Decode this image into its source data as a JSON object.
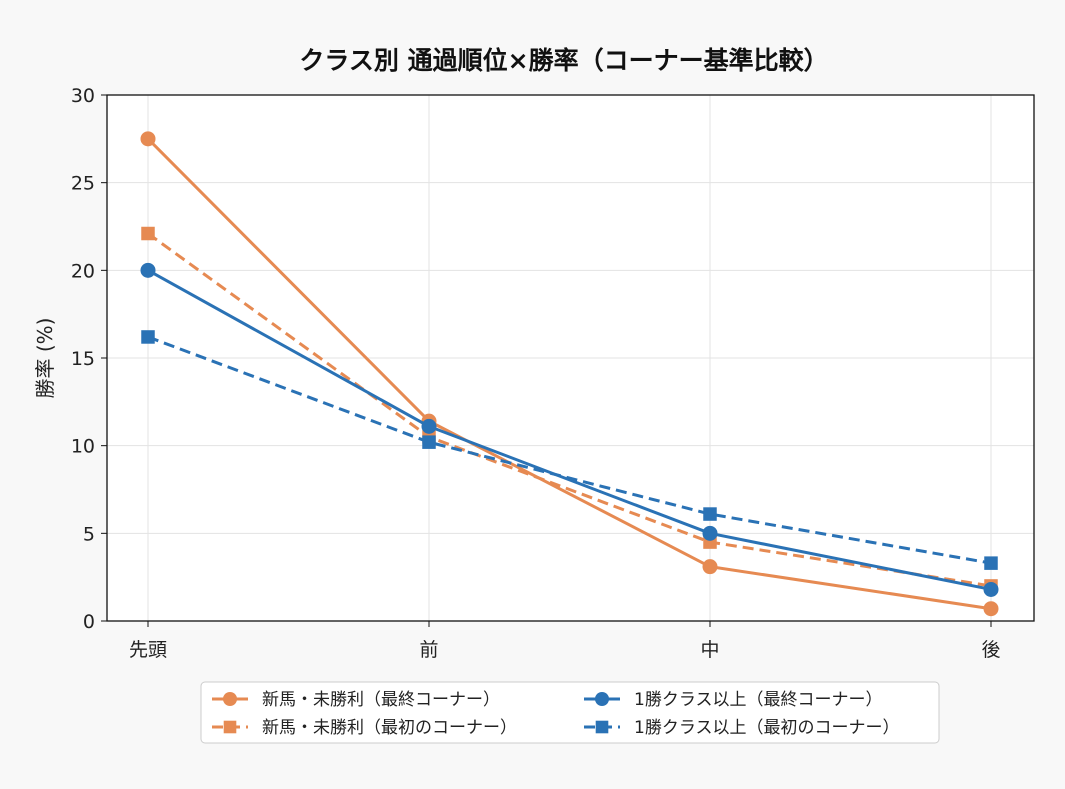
{
  "chart_data": {
    "type": "line",
    "title": "クラス別 通過順位×勝率（コーナー基準比較）",
    "xlabel": "",
    "ylabel": "勝率 (%)",
    "categories": [
      "先頭",
      "前",
      "中",
      "後"
    ],
    "ylim": [
      0,
      30
    ],
    "yticks": [
      0,
      5,
      10,
      15,
      20,
      25,
      30
    ],
    "grid": true,
    "legend_position": "bottom-center",
    "series": [
      {
        "name": "新馬・未勝利（最終コーナー）",
        "values": [
          27.5,
          11.4,
          3.1,
          0.7
        ],
        "color": "#e68a52",
        "line": "solid",
        "marker": "circle"
      },
      {
        "name": "新馬・未勝利（最初のコーナー）",
        "values": [
          22.1,
          10.5,
          4.5,
          2.0
        ],
        "color": "#e68a52",
        "line": "dashed",
        "marker": "square"
      },
      {
        "name": "1勝クラス以上（最終コーナー）",
        "values": [
          20.0,
          11.1,
          5.0,
          1.8
        ],
        "color": "#2a72b5",
        "line": "solid",
        "marker": "circle"
      },
      {
        "name": "1勝クラス以上（最初のコーナー）",
        "values": [
          16.2,
          10.2,
          6.1,
          3.3
        ],
        "color": "#2a72b5",
        "line": "dashed",
        "marker": "square"
      }
    ]
  }
}
